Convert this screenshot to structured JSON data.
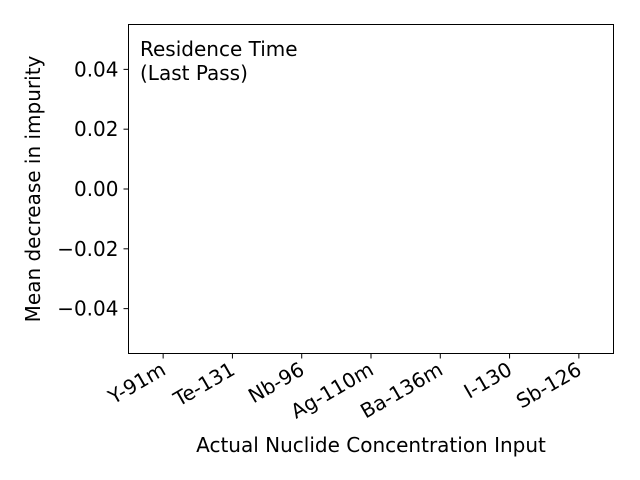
{
  "chart_data": {
    "type": "bar",
    "title": "",
    "xlabel": "Actual Nuclide Concentration Input",
    "ylabel": "Mean decrease in impurity",
    "categories": [
      "Y-91m",
      "Te-131",
      "Nb-96",
      "Ag-110m",
      "Ba-136m",
      "I-130",
      "Sb-126"
    ],
    "values": [
      0,
      0,
      0,
      0,
      0,
      0,
      0
    ],
    "yticks": [
      -0.04,
      -0.02,
      0.0,
      0.02,
      0.04
    ],
    "ytick_labels": [
      "−0.04",
      "−0.02",
      "0.00",
      "0.02",
      "0.04"
    ],
    "ylim": [
      -0.055,
      0.055
    ],
    "annotation": {
      "line1": "Residence Time",
      "line2": "(Last Pass)"
    },
    "grid": false,
    "colors": {
      "axes": "#000000",
      "background": "#ffffff"
    }
  }
}
